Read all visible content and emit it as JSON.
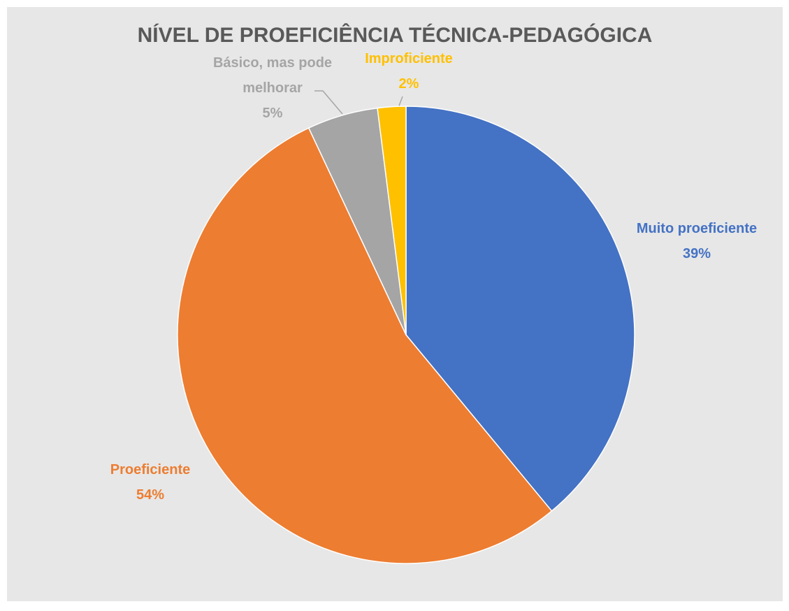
{
  "chart_data": {
    "type": "pie",
    "title": "NÍVEL DE PROEFICIÊNCIA TÉCNICA-PEDAGÓGICA",
    "categories": [
      "Muito proeficiente",
      "Proeficiente",
      "Básico, mas pode melhorar",
      "Improficiente"
    ],
    "values": [
      39,
      54,
      5,
      2
    ],
    "value_labels": [
      "39%",
      "54%",
      "5%",
      "2%"
    ],
    "colors": [
      "#4472c4",
      "#ed7d31",
      "#a5a5a5",
      "#ffc000"
    ]
  }
}
